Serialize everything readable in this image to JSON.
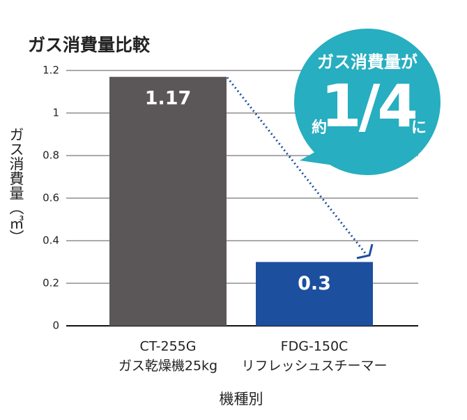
{
  "chart_data": {
    "type": "bar",
    "title": "ガス消費量比較",
    "y_label": "ガス消費量（㎥）",
    "x_label": "機種別",
    "categories": [
      [
        "CT-255G",
        "ガス乾燥機25kg"
      ],
      [
        "FDG-150C",
        "リフレッシュスチーマー"
      ]
    ],
    "values": [
      1.17,
      0.3
    ],
    "colors": [
      "#5b5758",
      "#1d4f9f"
    ],
    "ylim": [
      0,
      1.2
    ],
    "yticks": [
      0,
      0.2,
      0.4,
      0.6,
      0.8,
      1,
      1.2
    ],
    "grid": true,
    "annotation": {
      "line1": "ガス消費量が",
      "prefix": "約",
      "main": "1/4",
      "suffix": "に"
    }
  }
}
